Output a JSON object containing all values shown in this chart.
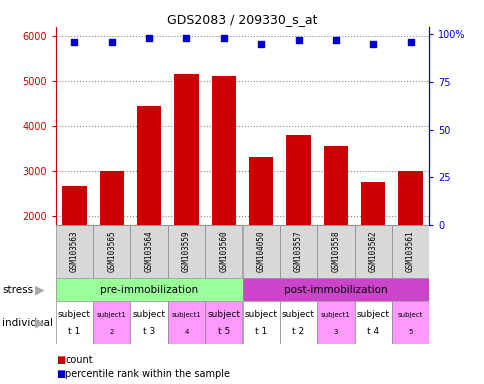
{
  "title": "GDS2083 / 209330_s_at",
  "samples": [
    "GSM103563",
    "GSM103565",
    "GSM103564",
    "GSM103559",
    "GSM103560",
    "GSM104050",
    "GSM103557",
    "GSM103558",
    "GSM103562",
    "GSM103561"
  ],
  "counts": [
    2650,
    3000,
    4450,
    5150,
    5100,
    3300,
    3800,
    3550,
    2750,
    3000
  ],
  "percentile_ranks": [
    96,
    96,
    98,
    98,
    98,
    95,
    97,
    97,
    95,
    96
  ],
  "ylim_left": [
    1800,
    6200
  ],
  "ylim_right": [
    0,
    104
  ],
  "yticks_left": [
    2000,
    3000,
    4000,
    5000,
    6000
  ],
  "yticks_right": [
    0,
    25,
    50,
    75,
    100
  ],
  "bar_color": "#cc0000",
  "dot_color": "#0000cc",
  "stress_groups": [
    {
      "label": "pre-immobilization",
      "start": 0,
      "end": 5,
      "color": "#99ff99"
    },
    {
      "label": "post-immobilization",
      "start": 5,
      "end": 10,
      "color": "#cc44cc"
    }
  ],
  "indiv_labels": [
    "subject\nt 1",
    "subject1\n2",
    "subject\nt 3",
    "subject1\n4",
    "subject\nt 5",
    "subject\nt 1",
    "subject\nt 2",
    "subject1\n3",
    "subject\nt 4",
    "subject\n5"
  ],
  "indiv_colors": [
    "#ffffff",
    "#ff99ff",
    "#ffffff",
    "#ff99ff",
    "#ff99ff",
    "#ffffff",
    "#ffffff",
    "#ff99ff",
    "#ffffff",
    "#ff99ff"
  ],
  "indiv_large": [
    true,
    false,
    true,
    false,
    true,
    true,
    true,
    false,
    true,
    false
  ],
  "grid_color": "#aaaaaa"
}
